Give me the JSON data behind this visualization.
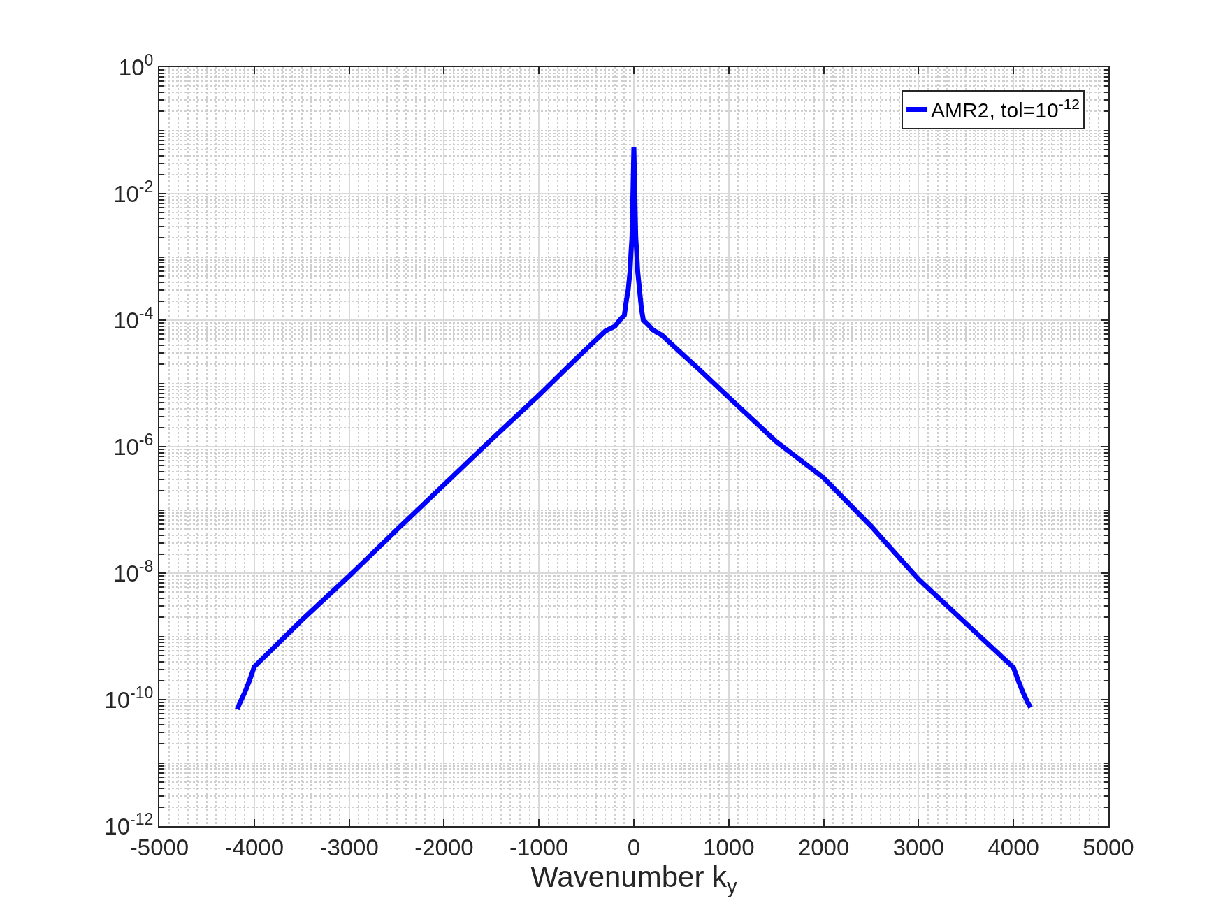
{
  "chart_data": {
    "type": "line",
    "xlabel": "Wavenumber k$_{y}$",
    "log": "y",
    "grid": true,
    "legend": "top right",
    "line_style": "solid",
    "marker": "none",
    "xlim": [
      -5000,
      5000
    ],
    "xticks": [
      -5000,
      -4000,
      -3000,
      -2000,
      -1000,
      0,
      1000,
      2000,
      3000,
      4000,
      5000
    ],
    "ylim": [
      1e-12,
      1
    ],
    "yticks": [
      {
        "value": 1e-12,
        "label": "10$^{-12}$"
      },
      {
        "value": 1e-10,
        "label": "10$^{-10}$"
      },
      {
        "value": 1e-08,
        "label": "10$^{-8}$"
      },
      {
        "value": 1e-06,
        "label": "10$^{-6}$"
      },
      {
        "value": 0.0001,
        "label": "10$^{-4}$"
      },
      {
        "value": 0.01,
        "label": "10$^{-2}$"
      },
      {
        "value": 1,
        "label": "10$^{0}$"
      }
    ],
    "series": [
      {
        "name": "AMR2, tol=10$^{-12}$",
        "color": "#0000ff",
        "x": [
          -4180,
          -4150,
          -4100,
          -4050,
          -4000,
          -3500,
          -3000,
          -2500,
          -2000,
          -1500,
          -1000,
          -700,
          -500,
          -300,
          -200,
          -150,
          -100,
          -80,
          -60,
          -40,
          -30,
          -20,
          -10,
          0,
          10,
          20,
          30,
          40,
          60,
          80,
          100,
          150,
          200,
          300,
          500,
          700,
          1000,
          1500,
          2000,
          2500,
          3000,
          3500,
          4000,
          4050,
          4100,
          4150,
          4180
        ],
        "values": [
          7e-11,
          9e-11,
          1.3e-10,
          2e-10,
          3.3e-10,
          1.8e-09,
          9e-09,
          4.8e-08,
          2.5e-07,
          1.3e-06,
          6.5e-06,
          1.8e-05,
          3.5e-05,
          6.7e-05,
          8e-05,
          0.0001,
          0.00012,
          0.0002,
          0.0003,
          0.0006,
          0.0012,
          0.002,
          0.01,
          0.055,
          0.01,
          0.002,
          0.0012,
          0.0006,
          0.0003,
          0.00015,
          0.0001,
          8.5e-05,
          7e-05,
          5.7e-05,
          3e-05,
          1.6e-05,
          6e-06,
          1.2e-06,
          3.2e-07,
          5.5e-08,
          8e-09,
          1.6e-09,
          3.2e-10,
          2e-10,
          1.3e-10,
          9e-11,
          7.5e-11
        ]
      }
    ]
  }
}
